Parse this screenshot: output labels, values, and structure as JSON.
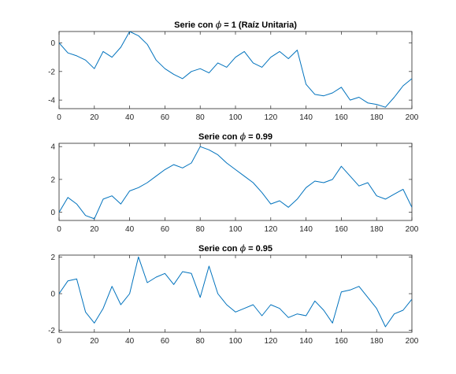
{
  "chart_data": [
    {
      "type": "line",
      "title_prefix": "Serie con ",
      "title_symbol": "ϕ",
      "title_suffix": " = 1 (Raíz Unitaria)",
      "xlabel": "",
      "ylabel": "",
      "xlim": [
        0,
        200
      ],
      "ylim": [
        -4.6,
        0.8
      ],
      "xticks": [
        0,
        20,
        40,
        60,
        80,
        100,
        120,
        140,
        160,
        180,
        200
      ],
      "yticks": [
        -4,
        -2,
        0
      ],
      "grid": false,
      "color": "#0072BD",
      "x": [
        0,
        5,
        10,
        15,
        20,
        25,
        30,
        35,
        40,
        45,
        50,
        55,
        60,
        65,
        70,
        75,
        80,
        85,
        90,
        95,
        100,
        105,
        110,
        115,
        120,
        125,
        130,
        135,
        140,
        145,
        150,
        155,
        160,
        165,
        170,
        175,
        180,
        185,
        190,
        195,
        200
      ],
      "values": [
        0.0,
        -0.7,
        -0.9,
        -1.2,
        -1.8,
        -0.6,
        -1.0,
        -0.3,
        0.8,
        0.5,
        -0.1,
        -1.2,
        -1.8,
        -2.2,
        -2.5,
        -2.0,
        -1.8,
        -2.1,
        -1.4,
        -1.7,
        -1.0,
        -0.6,
        -1.4,
        -1.7,
        -1.0,
        -0.6,
        -1.1,
        -0.5,
        -2.9,
        -3.6,
        -3.7,
        -3.5,
        -3.1,
        -4.0,
        -3.8,
        -4.2,
        -4.3,
        -4.5,
        -3.8,
        -3.0,
        -2.5
      ]
    },
    {
      "type": "line",
      "title_prefix": "Serie con ",
      "title_symbol": "ϕ",
      "title_suffix": " = 0.99",
      "xlabel": "",
      "ylabel": "",
      "xlim": [
        0,
        200
      ],
      "ylim": [
        -0.5,
        4.2
      ],
      "xticks": [
        0,
        20,
        40,
        60,
        80,
        100,
        120,
        140,
        160,
        180,
        200
      ],
      "yticks": [
        0,
        2,
        4
      ],
      "grid": false,
      "color": "#0072BD",
      "x": [
        0,
        5,
        10,
        15,
        20,
        25,
        30,
        35,
        40,
        45,
        50,
        55,
        60,
        65,
        70,
        75,
        80,
        85,
        90,
        95,
        100,
        105,
        110,
        115,
        120,
        125,
        130,
        135,
        140,
        145,
        150,
        155,
        160,
        165,
        170,
        175,
        180,
        185,
        190,
        195,
        200
      ],
      "values": [
        0.0,
        0.9,
        0.5,
        -0.2,
        -0.4,
        0.8,
        1.0,
        0.5,
        1.3,
        1.5,
        1.8,
        2.2,
        2.6,
        2.9,
        2.7,
        3.0,
        4.0,
        3.8,
        3.5,
        3.0,
        2.6,
        2.2,
        1.8,
        1.2,
        0.5,
        0.7,
        0.3,
        0.8,
        1.5,
        1.9,
        1.8,
        2.0,
        2.8,
        2.2,
        1.6,
        1.8,
        1.0,
        0.8,
        1.1,
        1.4,
        0.3
      ]
    },
    {
      "type": "line",
      "title_prefix": "Serie con ",
      "title_symbol": "ϕ",
      "title_suffix": " = 0.95",
      "xlabel": "",
      "ylabel": "",
      "xlim": [
        0,
        200
      ],
      "ylim": [
        -2.1,
        2.1
      ],
      "xticks": [
        0,
        20,
        40,
        60,
        80,
        100,
        120,
        140,
        160,
        180,
        200
      ],
      "yticks": [
        -2,
        0,
        2
      ],
      "grid": false,
      "color": "#0072BD",
      "x": [
        0,
        5,
        10,
        15,
        20,
        25,
        30,
        35,
        40,
        45,
        50,
        55,
        60,
        65,
        70,
        75,
        80,
        85,
        90,
        95,
        100,
        105,
        110,
        115,
        120,
        125,
        130,
        135,
        140,
        145,
        150,
        155,
        160,
        165,
        170,
        175,
        180,
        185,
        190,
        195,
        200
      ],
      "values": [
        0.0,
        0.7,
        0.8,
        -1.0,
        -1.6,
        -0.8,
        0.4,
        -0.6,
        0.0,
        2.0,
        0.6,
        0.9,
        1.1,
        0.5,
        1.2,
        1.1,
        -0.2,
        1.5,
        0.0,
        -0.6,
        -1.0,
        -0.8,
        -0.6,
        -1.2,
        -0.6,
        -0.8,
        -1.3,
        -1.1,
        -1.2,
        -0.4,
        -0.9,
        -1.6,
        0.1,
        0.2,
        0.4,
        -0.2,
        -0.8,
        -1.8,
        -1.1,
        -0.9,
        -0.3
      ]
    }
  ]
}
